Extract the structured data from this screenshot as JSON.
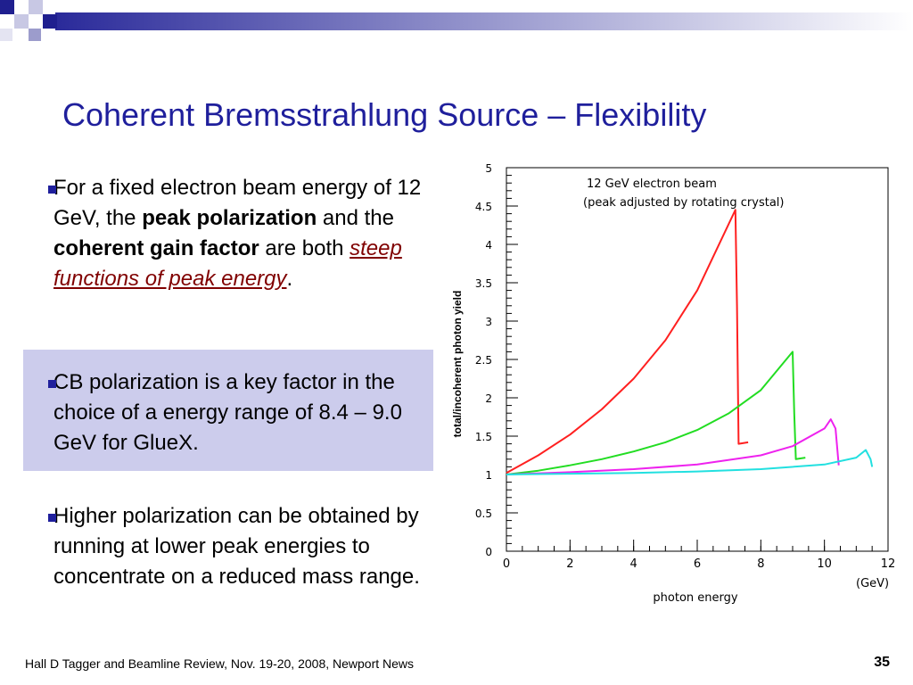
{
  "slide": {
    "title": "Coherent Bremsstrahlung Source – Flexibility",
    "bullets": [
      {
        "p1": "For a fixed electron beam energy of 12 GeV, the ",
        "b1": "peak polarization",
        "p2": " and the ",
        "b2": "coherent gain factor",
        "p3": " are both ",
        "emph": "steep functions of peak energy",
        "p4": "."
      },
      {
        "text": "CB polarization is a key factor in the choice of a energy range of 8.4 – 9.0 GeV for GlueX."
      },
      {
        "text": "Higher polarization can be obtained by running at lower peak energies to concentrate on a reduced mass range."
      }
    ],
    "footer": "Hall D Tagger and Beamline Review, Nov. 19-20, 2008, Newport News",
    "page_number": "35",
    "colors": {
      "title": "#1f1f9c",
      "highlight": "#ccccec",
      "emphasis": "#800000"
    }
  },
  "chart_data": {
    "type": "line",
    "annotation_line1": "12 GeV electron beam",
    "annotation_line2": "(peak adjusted by rotating crystal)",
    "xlabel": "photon energy",
    "xunit": "(GeV)",
    "ylabel": "total/incoherent photon yield",
    "xlim": [
      0,
      12
    ],
    "ylim": [
      0,
      5
    ],
    "x_ticks": [
      0,
      2,
      4,
      6,
      8,
      10,
      12
    ],
    "y_ticks": [
      0,
      0.5,
      1,
      1.5,
      2,
      2.5,
      3,
      3.5,
      4,
      4.5,
      5
    ],
    "x_tick_labels": [
      "0",
      "2",
      "4",
      "6",
      "8",
      "10",
      "12"
    ],
    "y_tick_labels": [
      "0",
      "0.5",
      "1",
      "1.5",
      "2",
      "2.5",
      "3",
      "3.5",
      "4",
      "4.5",
      "5"
    ],
    "series": [
      {
        "color": "#ff2020",
        "points": [
          [
            0,
            1.02
          ],
          [
            1,
            1.25
          ],
          [
            2,
            1.52
          ],
          [
            3,
            1.85
          ],
          [
            4,
            2.25
          ],
          [
            5,
            2.75
          ],
          [
            6,
            3.4
          ],
          [
            7.2,
            4.45
          ],
          [
            7.25,
            3.2
          ],
          [
            7.3,
            1.4
          ],
          [
            7.6,
            1.42
          ]
        ]
      },
      {
        "color": "#22dd22",
        "points": [
          [
            0,
            1.0
          ],
          [
            1,
            1.05
          ],
          [
            2,
            1.12
          ],
          [
            3,
            1.2
          ],
          [
            4,
            1.3
          ],
          [
            5,
            1.42
          ],
          [
            6,
            1.58
          ],
          [
            7,
            1.8
          ],
          [
            8,
            2.1
          ],
          [
            9,
            2.6
          ],
          [
            9.05,
            1.8
          ],
          [
            9.1,
            1.2
          ],
          [
            9.4,
            1.22
          ]
        ]
      },
      {
        "color": "#ee22ee",
        "points": [
          [
            0,
            1.0
          ],
          [
            2,
            1.03
          ],
          [
            4,
            1.07
          ],
          [
            6,
            1.13
          ],
          [
            8,
            1.25
          ],
          [
            9,
            1.37
          ],
          [
            10,
            1.6
          ],
          [
            10.2,
            1.72
          ],
          [
            10.35,
            1.6
          ],
          [
            10.45,
            1.12
          ]
        ]
      },
      {
        "color": "#22e0e0",
        "points": [
          [
            0,
            1.0
          ],
          [
            2,
            1.01
          ],
          [
            4,
            1.02
          ],
          [
            6,
            1.04
          ],
          [
            8,
            1.07
          ],
          [
            10,
            1.13
          ],
          [
            11,
            1.22
          ],
          [
            11.3,
            1.32
          ],
          [
            11.45,
            1.2
          ],
          [
            11.5,
            1.1
          ]
        ]
      }
    ]
  }
}
